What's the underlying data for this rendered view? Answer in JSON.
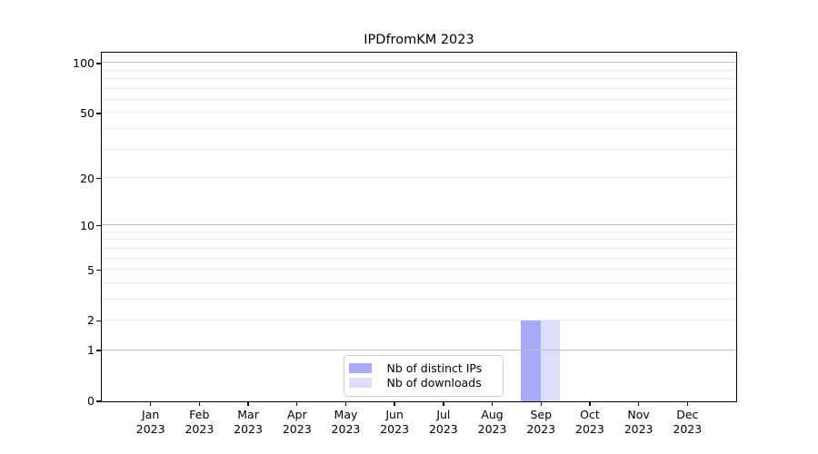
{
  "chart_data": {
    "type": "bar",
    "title": "IPDfromKM 2023",
    "categories": [
      "Jan 2023",
      "Feb 2023",
      "Mar 2023",
      "Apr 2023",
      "May 2023",
      "Jun 2023",
      "Jul 2023",
      "Aug 2023",
      "Sep 2023",
      "Oct 2023",
      "Nov 2023",
      "Dec 2023"
    ],
    "series": [
      {
        "name": "Nb of distinct IPs",
        "color": "#a8aaf8",
        "values": [
          0,
          0,
          0,
          0,
          0,
          0,
          0,
          0,
          2,
          0,
          0,
          0
        ]
      },
      {
        "name": "Nb of downloads",
        "color": "#dcddfa",
        "values": [
          0,
          0,
          0,
          0,
          0,
          0,
          0,
          0,
          2,
          0,
          0,
          0
        ]
      }
    ],
    "xlabel": "",
    "ylabel": "",
    "yscale": "log1p",
    "ylim": [
      0,
      116
    ],
    "yticks": [
      0,
      1,
      2,
      5,
      10,
      20,
      50,
      100
    ],
    "major_gridlines": [
      1,
      10,
      100
    ],
    "minor_gridlines": [
      2,
      3,
      4,
      5,
      6,
      7,
      8,
      9,
      20,
      30,
      40,
      50,
      60,
      70,
      80,
      90,
      110
    ],
    "grid": "horizontal",
    "legend_position": "lower center",
    "colors": {
      "major_grid": "#bdbdbd",
      "minor_grid": "#ececec",
      "spine": "#000000",
      "legend_border": "#cccccc",
      "background": "#ffffff"
    }
  }
}
